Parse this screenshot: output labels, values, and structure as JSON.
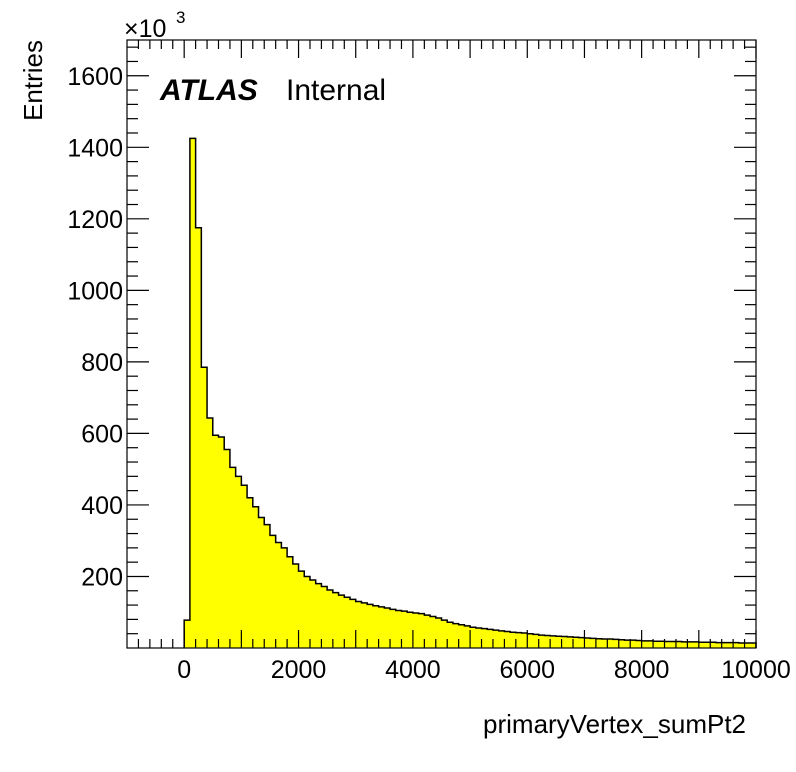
{
  "chart_data": {
    "type": "bar",
    "xlabel": "primaryVertex_sumPt2",
    "ylabel": "Entries",
    "y_multiplier_base": "×10",
    "y_multiplier_exponent": "3",
    "label_bold": "ATLAS",
    "label_text": "Internal",
    "xlim": [
      -1000,
      10000
    ],
    "ylim": [
      0,
      1700
    ],
    "x_ticks": [
      0,
      2000,
      4000,
      6000,
      8000,
      10000
    ],
    "y_ticks": [
      200,
      400,
      600,
      800,
      1000,
      1200,
      1400,
      1600
    ],
    "x_tick_labels": [
      "0",
      "2000",
      "4000",
      "6000",
      "8000",
      "10000"
    ],
    "y_tick_labels": [
      "200",
      "400",
      "600",
      "800",
      "1000",
      "1200",
      "1400",
      "1600"
    ],
    "bin_width": 100,
    "bin_start": 0,
    "values": [
      78,
      1425,
      1175,
      785,
      643,
      595,
      590,
      555,
      505,
      480,
      455,
      420,
      395,
      365,
      345,
      315,
      295,
      280,
      255,
      235,
      215,
      200,
      190,
      180,
      172,
      162,
      155,
      148,
      142,
      136,
      130,
      126,
      122,
      118,
      115,
      112,
      108,
      105,
      103,
      100,
      98,
      96,
      92,
      88,
      84,
      78,
      72,
      68,
      65,
      62,
      58,
      56,
      54,
      52,
      50,
      48,
      46,
      44,
      43,
      42,
      40,
      38,
      36,
      35,
      34,
      33,
      32,
      31,
      30,
      29,
      28,
      27,
      26,
      25,
      25,
      24,
      23,
      22,
      22,
      21,
      20,
      20,
      19,
      19,
      18,
      18,
      18,
      17,
      17,
      17,
      16,
      16,
      16,
      15,
      15,
      15,
      15,
      14,
      14,
      14
    ],
    "fill_color": "#ffff00",
    "line_color": "#000000",
    "grid": false
  }
}
